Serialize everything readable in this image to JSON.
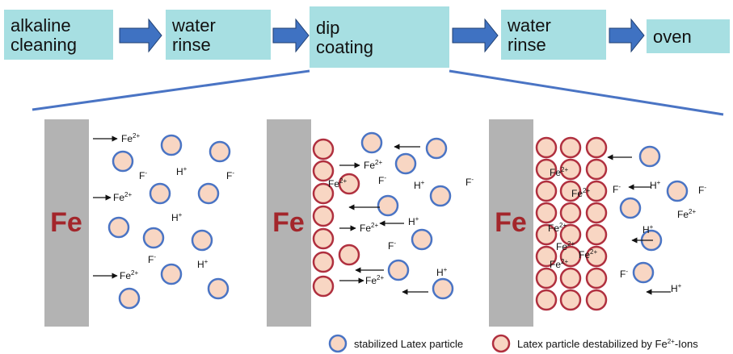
{
  "steps": [
    {
      "lines": [
        "alkaline",
        "cleaning"
      ]
    },
    {
      "lines": [
        "water",
        "rinse"
      ]
    },
    {
      "lines": [
        "dip",
        "coating"
      ]
    },
    {
      "lines": [
        "water",
        "rinse"
      ]
    },
    {
      "lines": [
        "oven"
      ]
    }
  ],
  "panels": [
    {
      "metal": "Fe",
      "ions": [
        {
          "base": "Fe",
          "sup": "2+"
        },
        {
          "base": "F",
          "sup": "-"
        },
        {
          "base": "H",
          "sup": "+"
        },
        {
          "base": "F",
          "sup": "-"
        },
        {
          "base": "Fe",
          "sup": "2+"
        },
        {
          "base": "H",
          "sup": "+"
        },
        {
          "base": "F",
          "sup": "-"
        },
        {
          "base": "H",
          "sup": "+"
        },
        {
          "base": "Fe",
          "sup": "2+"
        }
      ]
    },
    {
      "metal": "Fe",
      "ions": [
        {
          "base": "Fe",
          "sup": "2+"
        },
        {
          "base": "Fe",
          "sup": "2+"
        },
        {
          "base": "F",
          "sup": "-"
        },
        {
          "base": "H",
          "sup": "+"
        },
        {
          "base": "F",
          "sup": "-"
        },
        {
          "base": "H",
          "sup": "+"
        },
        {
          "base": "Fe",
          "sup": "2+"
        },
        {
          "base": "F",
          "sup": "-"
        },
        {
          "base": "H",
          "sup": "+"
        },
        {
          "base": "Fe",
          "sup": "2+"
        }
      ]
    },
    {
      "metal": "Fe",
      "ions": [
        {
          "base": "Fe",
          "sup": "2+"
        },
        {
          "base": "Fe",
          "sup": "2+"
        },
        {
          "base": "F",
          "sup": "-"
        },
        {
          "base": "H",
          "sup": "+"
        },
        {
          "base": "F",
          "sup": "-"
        },
        {
          "base": "Fe",
          "sup": "2+"
        },
        {
          "base": "Fe",
          "sup": "2+"
        },
        {
          "base": "H",
          "sup": "+"
        },
        {
          "base": "Fe",
          "sup": "2+"
        },
        {
          "base": "Fe",
          "sup": "2+"
        },
        {
          "base": "Fe",
          "sup": "2+"
        },
        {
          "base": "F",
          "sup": "-"
        },
        {
          "base": "H",
          "sup": "+"
        }
      ]
    }
  ],
  "legend": [
    {
      "text": "stabilized Latex particle"
    },
    {
      "text": "Latex particle destabilized by Fe",
      "sup": "2+",
      "after": "-Ions"
    }
  ]
}
